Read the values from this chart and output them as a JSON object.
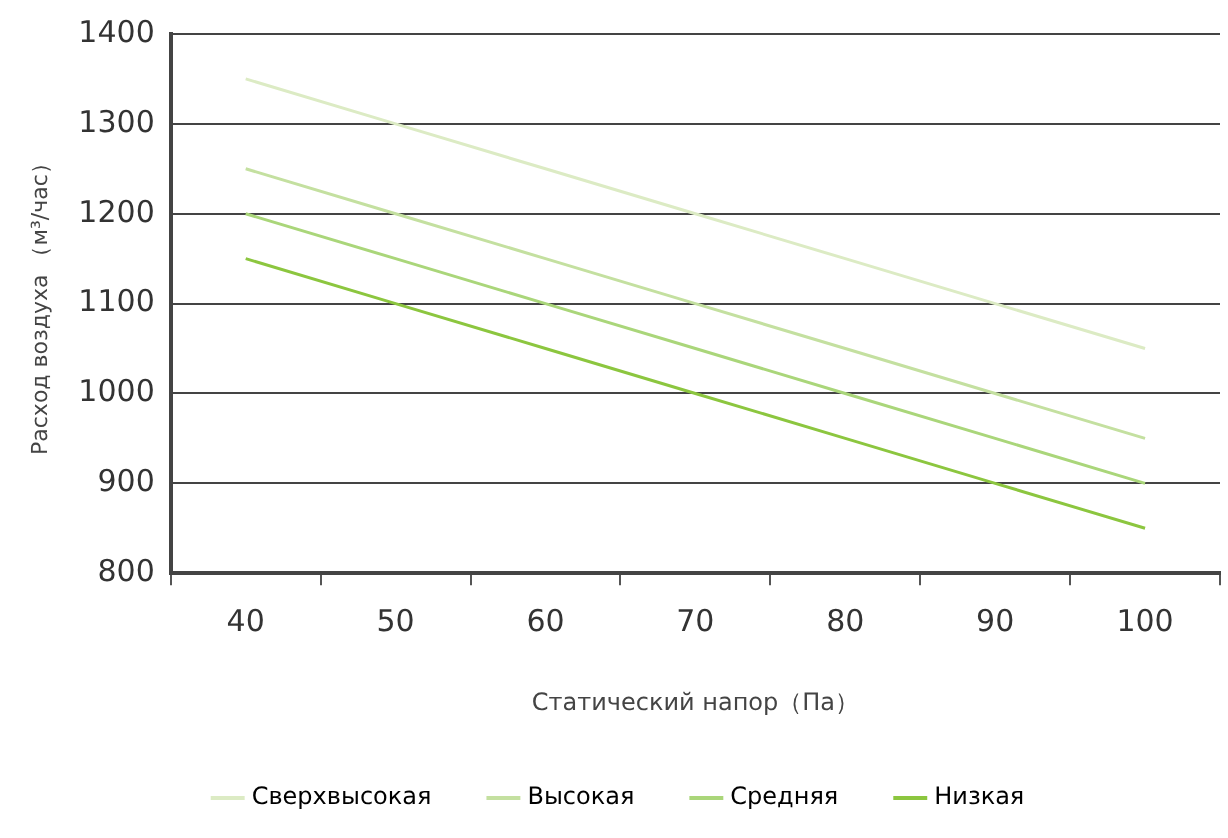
{
  "chart_data": {
    "type": "line",
    "xlabel": "Статический напор（Па）",
    "ylabel": "Расход воздуха （м³/час）",
    "categories": [
      "40",
      "50",
      "60",
      "70",
      "80",
      "90",
      "100"
    ],
    "series": [
      {
        "name": "Сверхвысокая",
        "color": "#dcebc4",
        "values": [
          1350,
          1300,
          1250,
          1200,
          1150,
          1100,
          1050
        ]
      },
      {
        "name": "Высокая",
        "color": "#c4e0a0",
        "values": [
          1250,
          1200,
          1150,
          1100,
          1050,
          1000,
          950
        ]
      },
      {
        "name": "Средняя",
        "color": "#aad67a",
        "values": [
          1200,
          1150,
          1100,
          1050,
          1000,
          950,
          900
        ]
      },
      {
        "name": "Низкая",
        "color": "#8cc63f",
        "values": [
          1150,
          1100,
          1050,
          1000,
          950,
          900,
          850
        ]
      }
    ],
    "ylim": [
      800,
      1400
    ],
    "yticks": [
      800,
      900,
      1000,
      1100,
      1200,
      1300,
      1400
    ],
    "grid": "y",
    "legend": "bottom",
    "marker": "none",
    "line_style": "solid"
  }
}
